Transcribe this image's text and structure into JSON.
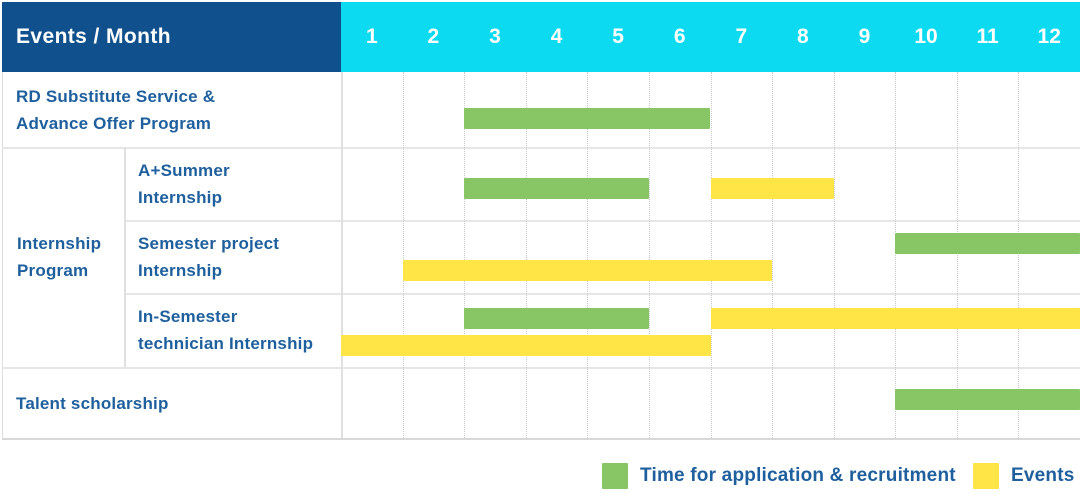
{
  "header": {
    "title": "Events / Month",
    "months": [
      "1",
      "2",
      "3",
      "4",
      "5",
      "6",
      "7",
      "8",
      "9",
      "10",
      "11",
      "12"
    ]
  },
  "group_cell": {
    "label": "Internship Program",
    "label_lines": [
      "Internship",
      "Program"
    ]
  },
  "legend": {
    "items": [
      {
        "color": "green",
        "label": "Time for application & recruitment"
      },
      {
        "color": "yellow",
        "label": "Events"
      }
    ]
  },
  "colors": {
    "header_bg": "#10508c",
    "month_bg": "#0bdaf0",
    "green": "#87c565",
    "yellow": "#ffe546",
    "label_text": "#1e5f9d",
    "grid_dotted": "#c9c9c9",
    "border": "#e6e6e6"
  },
  "chart_data": {
    "type": "gantt",
    "x_axis": {
      "unit": "month",
      "ticks": [
        1,
        2,
        3,
        4,
        5,
        6,
        7,
        8,
        9,
        10,
        11,
        12
      ],
      "range": [
        1,
        12
      ]
    },
    "series_legend": [
      {
        "name": "Time for application & recruitment",
        "color": "green"
      },
      {
        "name": "Events",
        "color": "yellow"
      }
    ],
    "rows": [
      {
        "label": "RD Substitute Service & Advance Offer Program",
        "label_lines": [
          "RD Substitute Service &",
          "Advance Offer Program"
        ],
        "group": null,
        "bars": [
          {
            "series": "Time for application & recruitment",
            "color": "green",
            "start_month": 3,
            "end_month": 6,
            "line": "single"
          }
        ]
      },
      {
        "label": "A+Summer Internship",
        "label_lines": [
          "A+Summer",
          "Internship"
        ],
        "group": "Internship Program",
        "bars": [
          {
            "series": "Time for application & recruitment",
            "color": "green",
            "start_month": 3,
            "end_month": 5,
            "line": "single"
          },
          {
            "series": "Events",
            "color": "yellow",
            "start_month": 7,
            "end_month": 8,
            "line": "single"
          }
        ]
      },
      {
        "label": "Semester project Internship",
        "label_lines": [
          "Semester project",
          "Internship"
        ],
        "group": "Internship Program",
        "bars": [
          {
            "series": "Time for application & recruitment",
            "color": "green",
            "start_month": 10,
            "end_month": 12,
            "line": "top"
          },
          {
            "series": "Events",
            "color": "yellow",
            "start_month": 2,
            "end_month": 7,
            "line": "bottom"
          }
        ]
      },
      {
        "label": "In-Semester technician Internship",
        "label_lines": [
          "In-Semester",
          "technician Internship"
        ],
        "group": "Internship Program",
        "bars": [
          {
            "series": "Time for application & recruitment",
            "color": "green",
            "start_month": 3,
            "end_month": 5,
            "line": "top"
          },
          {
            "series": "Events",
            "color": "yellow",
            "start_month": 7,
            "end_month": 12,
            "line": "top"
          },
          {
            "series": "Events",
            "color": "yellow",
            "start_month": 1,
            "end_month": 6,
            "line": "bottom"
          }
        ]
      },
      {
        "label": "Talent scholarship",
        "label_lines": [
          "Talent scholarship"
        ],
        "group": null,
        "bars": [
          {
            "series": "Time for application & recruitment",
            "color": "green",
            "start_month": 10,
            "end_month": 12,
            "line": "single"
          }
        ]
      }
    ]
  }
}
